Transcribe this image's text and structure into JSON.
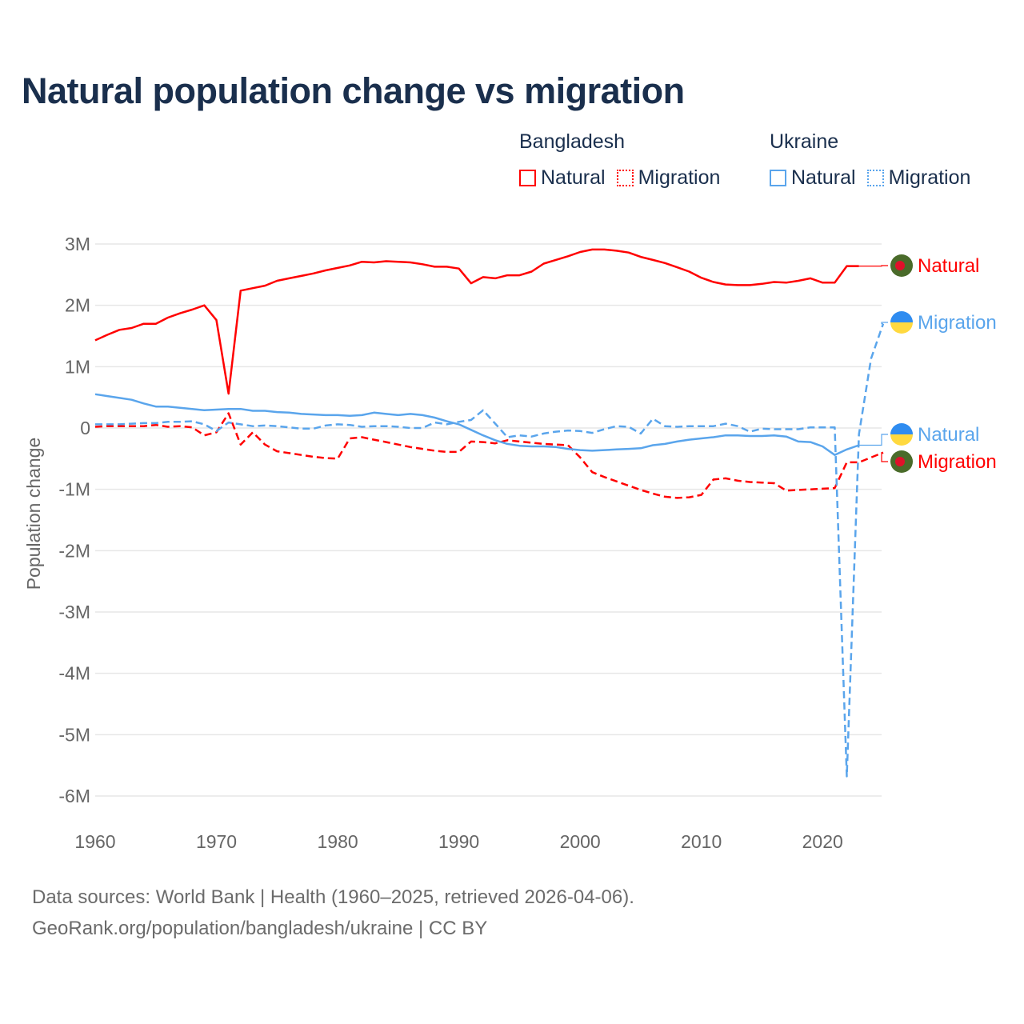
{
  "title": "Natural population change vs migration",
  "legend": {
    "groups": [
      {
        "name": "Bangladesh",
        "color": "#ff0000",
        "items": [
          "Natural",
          "Migration"
        ]
      },
      {
        "name": "Ukraine",
        "color": "#5aa5ec",
        "items": [
          "Natural",
          "Migration"
        ]
      }
    ]
  },
  "footer": {
    "line1": "Data sources: World Bank | Health (1960–2025, retrieved 2026-04-06).",
    "line2": "GeoRank.org/population/bangladesh/ukraine | CC BY"
  },
  "chart_data": {
    "type": "line",
    "title": "Natural population change vs migration",
    "xlabel": "",
    "ylabel": "Population change",
    "xlim": [
      1960,
      2025
    ],
    "ylim": [
      -6000000,
      3000000
    ],
    "x_ticks": [
      1960,
      1970,
      1980,
      1990,
      2000,
      2010,
      2020
    ],
    "x_tick_labels": [
      "1960",
      "1970",
      "1980",
      "1990",
      "2000",
      "2010",
      "2020"
    ],
    "y_ticks": [
      3000000,
      2000000,
      1000000,
      0,
      -1000000,
      -2000000,
      -3000000,
      -4000000,
      -5000000,
      -6000000
    ],
    "y_tick_labels": [
      "3M",
      "2M",
      "1M",
      "0",
      "-1M",
      "-2M",
      "-3M",
      "-4M",
      "-5M",
      "-6M"
    ],
    "grid": true,
    "legend_placement": "top-right",
    "units": "millions",
    "series": [
      {
        "name": "Bangladesh Natural",
        "label": "Natural",
        "country": "Bangladesh",
        "color": "#ff0000",
        "dash": false,
        "start": 1960,
        "values": [
          1.43,
          1.52,
          1.6,
          1.63,
          1.7,
          1.7,
          1.8,
          1.87,
          1.93,
          2.0,
          1.76,
          0.56,
          2.24,
          2.28,
          2.32,
          2.4,
          2.44,
          2.48,
          2.52,
          2.57,
          2.61,
          2.65,
          2.71,
          2.7,
          2.72,
          2.71,
          2.7,
          2.67,
          2.63,
          2.63,
          2.6,
          2.36,
          2.46,
          2.44,
          2.49,
          2.49,
          2.55,
          2.68,
          2.74,
          2.8,
          2.87,
          2.91,
          2.91,
          2.89,
          2.86,
          2.79,
          2.74,
          2.69,
          2.62,
          2.55,
          2.45,
          2.38,
          2.34,
          2.33,
          2.33,
          2.35,
          2.38,
          2.37,
          2.4,
          2.44,
          2.37,
          2.37,
          2.64,
          2.64
        ]
      },
      {
        "name": "Bangladesh Migration",
        "label": "Migration",
        "country": "Bangladesh",
        "color": "#ff0000",
        "dash": true,
        "start": 1960,
        "values": [
          0.02,
          0.03,
          0.03,
          0.03,
          0.03,
          0.05,
          0.02,
          0.03,
          0.01,
          -0.12,
          -0.07,
          0.24,
          -0.27,
          -0.07,
          -0.27,
          -0.38,
          -0.41,
          -0.44,
          -0.47,
          -0.49,
          -0.5,
          -0.17,
          -0.15,
          -0.19,
          -0.23,
          -0.27,
          -0.31,
          -0.34,
          -0.37,
          -0.39,
          -0.39,
          -0.22,
          -0.23,
          -0.25,
          -0.2,
          -0.22,
          -0.24,
          -0.26,
          -0.27,
          -0.28,
          -0.48,
          -0.72,
          -0.8,
          -0.87,
          -0.94,
          -1.01,
          -1.07,
          -1.12,
          -1.14,
          -1.13,
          -1.09,
          -0.84,
          -0.82,
          -0.86,
          -0.88,
          -0.89,
          -0.9,
          -1.02,
          -1.01,
          -1.0,
          -0.99,
          -0.98,
          -0.56,
          -0.56,
          -0.48,
          -0.4
        ]
      },
      {
        "name": "Ukraine Natural",
        "label": "Natural",
        "country": "Ukraine",
        "color": "#5aa5ec",
        "dash": false,
        "start": 1960,
        "values": [
          0.55,
          0.52,
          0.49,
          0.46,
          0.4,
          0.35,
          0.35,
          0.33,
          0.31,
          0.29,
          0.3,
          0.31,
          0.31,
          0.28,
          0.28,
          0.26,
          0.25,
          0.23,
          0.22,
          0.21,
          0.21,
          0.2,
          0.21,
          0.25,
          0.23,
          0.21,
          0.23,
          0.21,
          0.17,
          0.11,
          0.06,
          -0.03,
          -0.12,
          -0.2,
          -0.26,
          -0.29,
          -0.3,
          -0.3,
          -0.31,
          -0.34,
          -0.36,
          -0.37,
          -0.36,
          -0.35,
          -0.34,
          -0.33,
          -0.28,
          -0.26,
          -0.22,
          -0.19,
          -0.17,
          -0.15,
          -0.12,
          -0.12,
          -0.13,
          -0.13,
          -0.12,
          -0.14,
          -0.22,
          -0.23,
          -0.3,
          -0.44,
          -0.35,
          -0.28
        ]
      },
      {
        "name": "Ukraine Migration",
        "label": "Migration",
        "country": "Ukraine",
        "color": "#5aa5ec",
        "dash": true,
        "start": 1960,
        "values": [
          0.06,
          0.06,
          0.06,
          0.07,
          0.08,
          0.08,
          0.1,
          0.1,
          0.11,
          0.06,
          -0.05,
          0.09,
          0.06,
          0.03,
          0.04,
          0.03,
          0.01,
          -0.01,
          -0.01,
          0.04,
          0.06,
          0.05,
          0.02,
          0.03,
          0.03,
          0.02,
          0.0,
          0.0,
          0.09,
          0.06,
          0.1,
          0.13,
          0.29,
          0.07,
          -0.15,
          -0.12,
          -0.14,
          -0.09,
          -0.06,
          -0.04,
          -0.05,
          -0.08,
          -0.02,
          0.03,
          0.02,
          -0.09,
          0.15,
          0.03,
          0.02,
          0.03,
          0.03,
          0.03,
          0.07,
          0.03,
          -0.06,
          -0.01,
          -0.02,
          -0.02,
          -0.02,
          0.01,
          0.01,
          0.01,
          -5.68,
          -0.1,
          1.13,
          1.7
        ]
      }
    ]
  }
}
